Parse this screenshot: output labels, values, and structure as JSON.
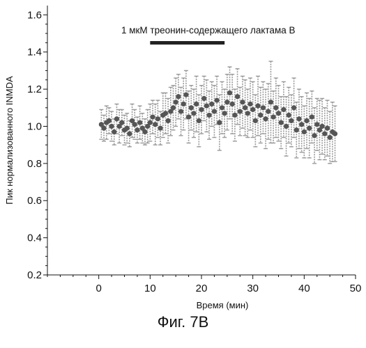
{
  "chart_data": {
    "type": "scatter",
    "ylabel": "Пик нормализованного INMDA",
    "xlabel": "Время (мин)",
    "xlim": [
      -10,
      50
    ],
    "ylim": [
      0.2,
      1.65
    ],
    "xticks": [
      0,
      10,
      20,
      30,
      40,
      50
    ],
    "yticks": [
      0.2,
      0.4,
      0.6,
      0.8,
      1.0,
      1.2,
      1.4,
      1.6
    ],
    "xtick_labels": [
      "0",
      "10",
      "20",
      "30",
      "40",
      "50"
    ],
    "ytick_labels": [
      "0.2",
      "0.4",
      "0.6",
      "0.8",
      "1.0",
      "1.2",
      "1.4",
      "1.6"
    ],
    "error_bars": true,
    "grid": false,
    "series": [
      {
        "marker_color": "#555555",
        "error_color": "#9a9a9a",
        "x": [
          0.5,
          1.0,
          1.5,
          2.0,
          2.5,
          3.0,
          3.5,
          4.0,
          4.5,
          5.0,
          5.5,
          6.0,
          6.5,
          7.0,
          7.5,
          8.0,
          8.5,
          9.0,
          9.5,
          10.0,
          10.5,
          11.0,
          11.5,
          12.0,
          12.5,
          13.0,
          13.5,
          14.0,
          14.5,
          15.0,
          15.5,
          16.0,
          16.5,
          17.0,
          17.5,
          18.0,
          18.5,
          19.0,
          19.5,
          20.0,
          20.5,
          21.0,
          21.5,
          22.0,
          22.5,
          23.0,
          23.5,
          24.0,
          24.5,
          25.0,
          25.5,
          26.0,
          26.5,
          27.0,
          27.5,
          28.0,
          28.5,
          29.0,
          29.5,
          30.0,
          30.5,
          31.0,
          31.5,
          32.0,
          32.5,
          33.0,
          33.5,
          34.0,
          34.5,
          35.0,
          35.5,
          36.0,
          36.5,
          37.0,
          37.5,
          38.0,
          38.5,
          39.0,
          39.5,
          40.0,
          40.5,
          41.0,
          41.5,
          42.0,
          42.5,
          43.0,
          43.5,
          44.0,
          44.5,
          45.0,
          45.5,
          46.0
        ],
        "y": [
          1.01,
          0.99,
          1.02,
          1.03,
          1.0,
          0.97,
          1.04,
          1.0,
          1.02,
          0.98,
          0.99,
          0.96,
          1.03,
          1.01,
          0.98,
          1.02,
          0.99,
          0.97,
          1.0,
          1.02,
          1.05,
          1.01,
          1.04,
          0.99,
          1.06,
          1.07,
          1.03,
          1.08,
          1.1,
          1.13,
          1.16,
          1.08,
          1.12,
          1.17,
          1.05,
          1.1,
          1.07,
          1.12,
          1.03,
          1.09,
          1.15,
          1.11,
          1.06,
          1.12,
          1.08,
          1.14,
          1.02,
          1.1,
          1.07,
          1.13,
          1.18,
          1.12,
          1.06,
          1.16,
          1.08,
          1.13,
          1.1,
          1.07,
          1.12,
          1.09,
          1.03,
          1.11,
          1.06,
          1.1,
          1.04,
          1.08,
          1.13,
          1.05,
          1.1,
          1.07,
          1.02,
          1.09,
          1.0,
          1.06,
          1.03,
          1.1,
          0.98,
          1.04,
          1.01,
          0.97,
          1.03,
          0.99,
          1.05,
          0.95,
          1.01,
          0.98,
          1.0,
          0.96,
          0.99,
          0.94,
          0.97,
          0.96
        ],
        "err": [
          0.08,
          0.07,
          0.09,
          0.07,
          0.08,
          0.07,
          0.08,
          0.09,
          0.07,
          0.08,
          0.08,
          0.07,
          0.09,
          0.08,
          0.07,
          0.09,
          0.08,
          0.07,
          0.09,
          0.1,
          0.09,
          0.11,
          0.1,
          0.09,
          0.12,
          0.11,
          0.12,
          0.13,
          0.12,
          0.13,
          0.12,
          0.13,
          0.14,
          0.13,
          0.14,
          0.12,
          0.13,
          0.15,
          0.14,
          0.13,
          0.12,
          0.14,
          0.13,
          0.12,
          0.14,
          0.13,
          0.15,
          0.14,
          0.13,
          0.15,
          0.14,
          0.16,
          0.14,
          0.15,
          0.13,
          0.14,
          0.15,
          0.13,
          0.14,
          0.15,
          0.14,
          0.16,
          0.15,
          0.14,
          0.16,
          0.15,
          0.22,
          0.14,
          0.16,
          0.15,
          0.14,
          0.15,
          0.16,
          0.15,
          0.14,
          0.16,
          0.15,
          0.16,
          0.15,
          0.14,
          0.15,
          0.16,
          0.14,
          0.15,
          0.14,
          0.16,
          0.15,
          0.14,
          0.15,
          0.14,
          0.16,
          0.15
        ]
      }
    ],
    "annotation": {
      "text": "1 мкМ треонин-содержащего лактама B",
      "bar_from": 10,
      "bar_to": 24.5
    }
  },
  "caption": "Фиг. 7B"
}
